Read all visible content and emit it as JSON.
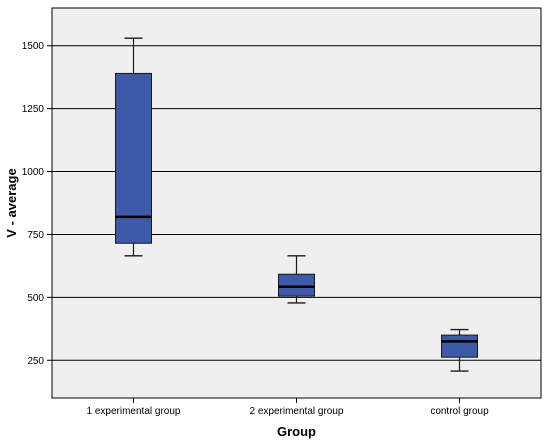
{
  "chart_data": {
    "type": "box",
    "xlabel": "Group",
    "ylabel": "V - average",
    "ylim": [
      100,
      1650
    ],
    "yticks": [
      250,
      500,
      750,
      1000,
      1250,
      1500
    ],
    "ytick_labels": [
      "250",
      "500",
      "750",
      "1000",
      "1250",
      "1500"
    ],
    "grid": true,
    "categories": [
      "1 experimental group",
      "2 experimental group",
      "control group"
    ],
    "boxes": [
      {
        "category": "1 experimental group",
        "min": 665,
        "q1": 715,
        "median": 820,
        "q3": 1390,
        "max": 1530
      },
      {
        "category": "2 experimental group",
        "min": 478,
        "q1": 505,
        "median": 542,
        "q3": 592,
        "max": 665
      },
      {
        "category": "control group",
        "min": 207,
        "q1": 262,
        "median": 325,
        "q3": 350,
        "max": 372
      }
    ]
  },
  "colors": {
    "plot_background": "#efeff0",
    "box_fill": "#3d5aa8",
    "box_stroke": "#1a1a1a",
    "median": "#000000",
    "grid": "#000000"
  }
}
